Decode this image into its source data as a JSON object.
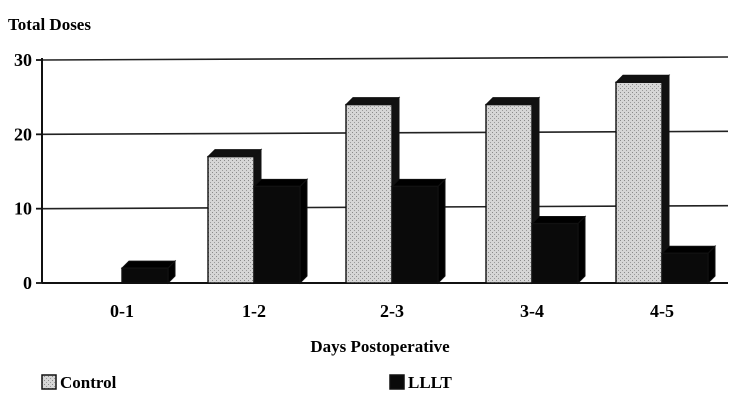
{
  "chart_data": {
    "type": "bar",
    "title": "",
    "ylabel": "Total Doses",
    "xlabel": "Days Postoperative",
    "categories": [
      "0-1",
      "1-2",
      "2-3",
      "3-4",
      "4-5"
    ],
    "series": [
      {
        "name": "Control",
        "values": [
          0,
          17,
          24,
          24,
          27
        ],
        "color": "#d0d0d0"
      },
      {
        "name": "LLLT",
        "values": [
          2,
          13,
          13,
          8,
          4
        ],
        "color": "#0a0a0a"
      }
    ],
    "ylim": [
      0,
      30
    ],
    "yticks": [
      0,
      10,
      20,
      30
    ],
    "grid": true,
    "legend_position": "bottom",
    "style": "3d"
  }
}
